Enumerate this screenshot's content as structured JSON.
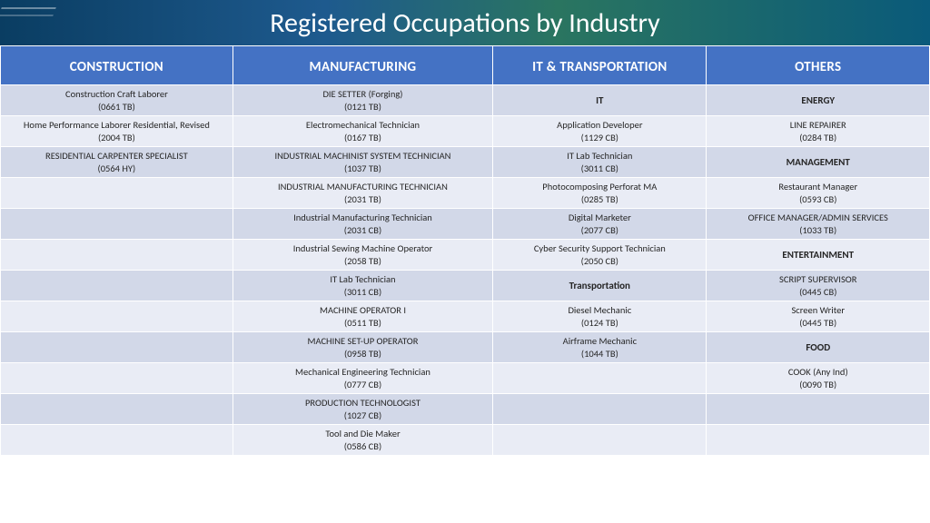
{
  "title": "Registered Occupations by Industry",
  "headers": [
    "CONSTRUCTION",
    "MANUFACTURING",
    "IT & TRANSPORTATION",
    "OTHERS"
  ],
  "rows": [
    {
      "c1": {
        "t": "Construction Craft Laborer",
        "c": "(0661 TB)"
      },
      "c2": {
        "t": "DIE SETTER (Forging)",
        "c": "(0121 TB)"
      },
      "c3": {
        "sub": "IT"
      },
      "c4": {
        "sub": "ENERGY"
      }
    },
    {
      "c1": {
        "t": "Home Performance Laborer Residential, Revised",
        "c": "(2004 TB)"
      },
      "c2": {
        "t": "Electromechanical Technician",
        "c": "(0167 TB)"
      },
      "c3": {
        "t": "Application Developer",
        "c": "(1129 CB)"
      },
      "c4": {
        "t": "LINE REPAIRER",
        "c": "(0284 TB)"
      }
    },
    {
      "c1": {
        "t": "RESIDENTIAL CARPENTER SPECIALIST",
        "c": "(0564 HY)"
      },
      "c2": {
        "t": "INDUSTRIAL MACHINIST SYSTEM TECHNICIAN",
        "c": "(1037 TB)"
      },
      "c3": {
        "t": "IT Lab Technician",
        "c": "(3011 CB)"
      },
      "c4": {
        "sub": "MANAGEMENT"
      }
    },
    {
      "c1": {},
      "c2": {
        "t": "INDUSTRIAL MANUFACTURING TECHNICIAN",
        "c": "(2031 TB)"
      },
      "c3": {
        "t": "Photocomposing Perforat MA",
        "c": "(0285 TB)"
      },
      "c4": {
        "t": "Restaurant Manager",
        "c": "(0593 CB)"
      }
    },
    {
      "c1": {},
      "c2": {
        "t": "Industrial Manufacturing Technician",
        "c": "(2031 CB)"
      },
      "c3": {
        "t": "Digital Marketer",
        "c": "(2077 CB)"
      },
      "c4": {
        "t": "OFFICE MANAGER/ADMIN SERVICES",
        "c": "(1033 TB)"
      }
    },
    {
      "c1": {},
      "c2": {
        "t": "Industrial Sewing Machine Operator",
        "c": "(2058 TB)"
      },
      "c3": {
        "t": "Cyber Security Support Technician",
        "c": "(2050 CB)"
      },
      "c4": {
        "sub": "ENTERTAINMENT"
      }
    },
    {
      "c1": {},
      "c2": {
        "t": "IT Lab Technician",
        "c": "(3011 CB)"
      },
      "c3": {
        "sub": "Transportation"
      },
      "c4": {
        "t": "SCRIPT SUPERVISOR",
        "c": "(0445 CB)"
      }
    },
    {
      "c1": {},
      "c2": {
        "t": "MACHINE OPERATOR I",
        "c": "(0511 TB)"
      },
      "c3": {
        "t": "Diesel Mechanic",
        "c": "(0124 TB)"
      },
      "c4": {
        "t": "Screen Writer",
        "c": "(0445 TB)"
      }
    },
    {
      "c1": {},
      "c2": {
        "t": "MACHINE SET-UP OPERATOR",
        "c": "(0958 TB)"
      },
      "c3": {
        "t": "Airframe Mechanic",
        "c": "(1044 TB)"
      },
      "c4": {
        "sub": "FOOD"
      }
    },
    {
      "c1": {},
      "c2": {
        "t": "Mechanical Engineering Technician",
        "c": "(0777 CB)"
      },
      "c3": {},
      "c4": {
        "t": "COOK (Any Ind)",
        "c": "(0090 TB)"
      }
    },
    {
      "c1": {},
      "c2": {
        "t": "PRODUCTION TECHNOLOGIST",
        "c": "(1027 CB)"
      },
      "c3": {},
      "c4": {}
    },
    {
      "c1": {},
      "c2": {
        "t": "Tool and Die Maker",
        "c": "(0586 CB)"
      },
      "c3": {},
      "c4": {}
    }
  ]
}
